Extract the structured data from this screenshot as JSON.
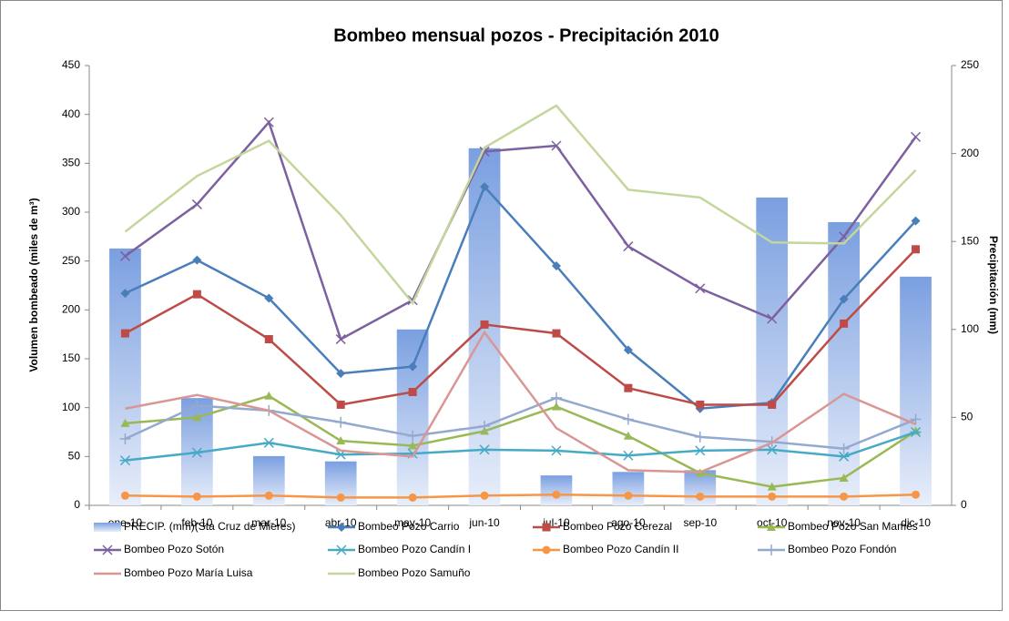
{
  "chart_data": {
    "type": "bar_line",
    "title": "Bombeo mensual pozos - Precipitación 2010",
    "y_label": "Volumen bombeado (miles de m³)",
    "y2_label": "Precipitación (mm)",
    "categories": [
      "ene-10",
      "feb-10",
      "mar-10",
      "abr-10",
      "may-10",
      "jun-10",
      "jul-10",
      "ago-10",
      "sep-10",
      "oct-10",
      "nov-10",
      "dic-10"
    ],
    "ylim": [
      0,
      450
    ],
    "yticks": [
      0,
      50,
      100,
      150,
      200,
      250,
      300,
      350,
      400,
      450
    ],
    "y2lim": [
      0,
      250
    ],
    "y2ticks": [
      0,
      50,
      100,
      150,
      200,
      250
    ],
    "series": [
      {
        "name": "PRECIP. (mm)(Sta Cruz de Mieres)",
        "type": "bar",
        "axis": "y2",
        "color": "#7a9fe0",
        "values": [
          146,
          61,
          28,
          25,
          100,
          203,
          17,
          19,
          20,
          175,
          161,
          130
        ]
      },
      {
        "name": "Bombeo Pozo Carrio",
        "type": "line",
        "marker": "diamond",
        "color": "#4a7ebb",
        "values": [
          217,
          251,
          212,
          135,
          142,
          326,
          245,
          159,
          99,
          105,
          211,
          291
        ]
      },
      {
        "name": "Bombeo Pozo Cerezal",
        "type": "line",
        "marker": "square",
        "color": "#be4b48",
        "values": [
          176,
          216,
          170,
          103,
          116,
          185,
          176,
          120,
          103,
          103,
          186,
          262
        ]
      },
      {
        "name": "Bombeo Pozo San Mamés",
        "type": "line",
        "marker": "triangle",
        "color": "#98b954",
        "values": [
          84,
          90,
          112,
          66,
          61,
          76,
          101,
          71,
          33,
          19,
          28,
          76
        ]
      },
      {
        "name": "Bombeo Pozo Sotón",
        "type": "line",
        "marker": "x",
        "color": "#7d60a0",
        "values": [
          255,
          308,
          392,
          170,
          210,
          362,
          368,
          265,
          222,
          191,
          275,
          377
        ]
      },
      {
        "name": "Bombeo Pozo Candín I",
        "type": "line",
        "marker": "star",
        "color": "#46aac5",
        "values": [
          46,
          54,
          64,
          52,
          53,
          57,
          56,
          51,
          56,
          57,
          50,
          75
        ]
      },
      {
        "name": "Bombeo Pozo Candín II",
        "type": "line",
        "marker": "circle",
        "color": "#f79646",
        "values": [
          10,
          9,
          10,
          8,
          8,
          10,
          11,
          10,
          9,
          9,
          9,
          11
        ]
      },
      {
        "name": "Bombeo Pozo Fondón",
        "type": "line",
        "marker": "plus",
        "color": "#93a9cf",
        "values": [
          68,
          102,
          97,
          85,
          71,
          81,
          110,
          88,
          70,
          65,
          58,
          88
        ]
      },
      {
        "name": "Bombeo Pozo María Luisa",
        "type": "line",
        "marker": "none",
        "color": "#d99694",
        "values": [
          99,
          113,
          97,
          56,
          50,
          177,
          79,
          36,
          34,
          64,
          114,
          83
        ]
      },
      {
        "name": "Bombeo Pozo Samuño",
        "type": "line",
        "marker": "none",
        "color": "#c3d69b",
        "values": [
          280,
          337,
          373,
          297,
          207,
          366,
          409,
          323,
          315,
          269,
          268,
          343
        ]
      }
    ]
  }
}
